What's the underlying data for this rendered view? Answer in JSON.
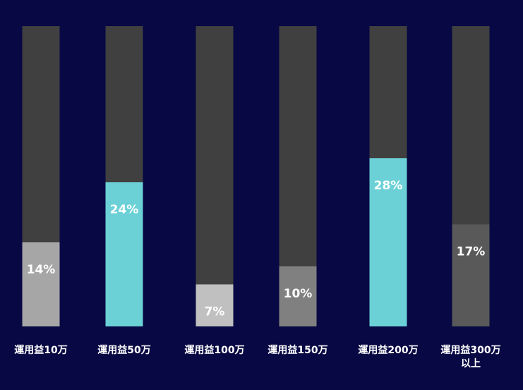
{
  "chart_data": {
    "type": "bar",
    "stacked_to_100": true,
    "categories": [
      "運用益10万",
      "運用益50万",
      "運用益100万",
      "運用益150万",
      "運用益200万",
      "運用益300万\n以上"
    ],
    "values": [
      14,
      24,
      7,
      10,
      28,
      17
    ],
    "value_labels": [
      "14%",
      "24%",
      "7%",
      "10%",
      "28%",
      "17%"
    ],
    "ylim": [
      0,
      50
    ],
    "grid": false,
    "legend": "none",
    "colors": {
      "background": "#080844",
      "track": "#404040",
      "bars": [
        "#a6a6a6",
        "#6bd1d6",
        "#c0c0c0",
        "#808080",
        "#6bd1d6",
        "#595959"
      ],
      "label": "#ffffff"
    }
  }
}
